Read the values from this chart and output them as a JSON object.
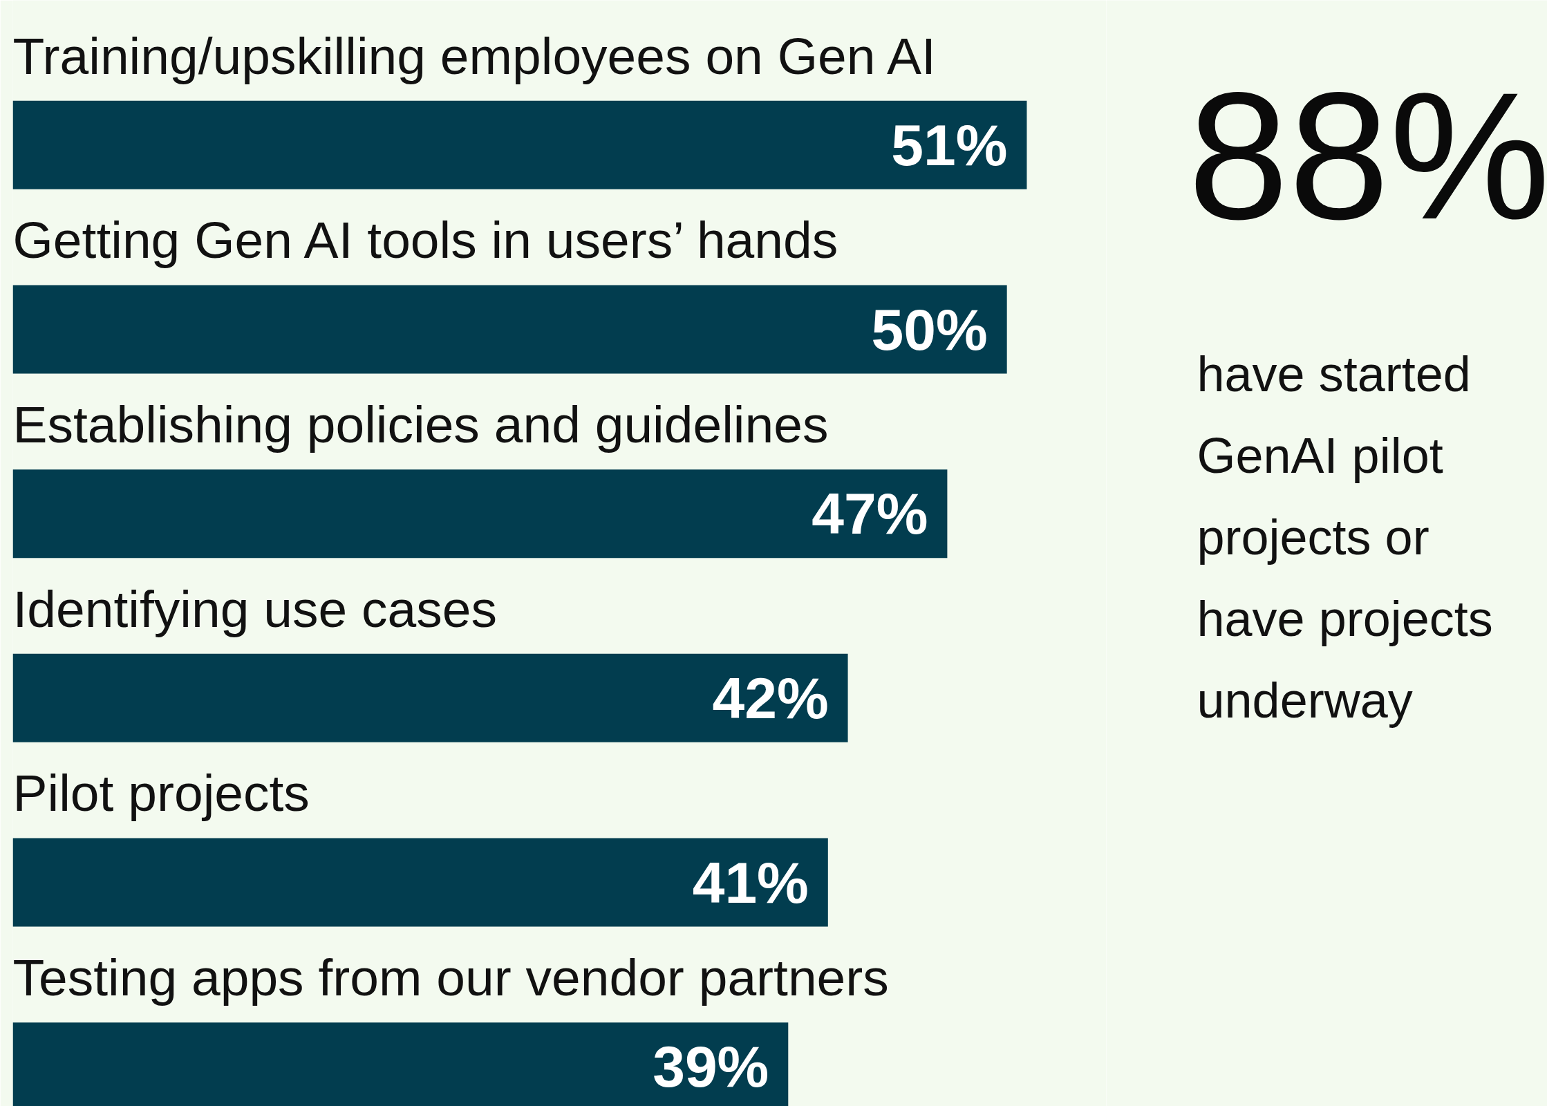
{
  "chart_data": {
    "type": "bar",
    "orientation": "horizontal",
    "categories": [
      "Training/upskilling employees on Gen AI",
      "Getting Gen AI tools in users’ hands",
      "Establishing policies and guidelines",
      "Identifying use cases",
      "Pilot projects",
      "Testing apps from our vendor partners"
    ],
    "values": [
      51,
      50,
      47,
      42,
      41,
      39
    ],
    "value_labels": [
      "51%",
      "50%",
      "47%",
      "42%",
      "41%",
      "39%"
    ],
    "color": "#023d4f",
    "xlim": [
      0,
      55
    ],
    "tick_labels": false,
    "grid": false,
    "annotations": [
      "88%",
      "have started GenAI pilot projects or have projects underway"
    ]
  }
}
